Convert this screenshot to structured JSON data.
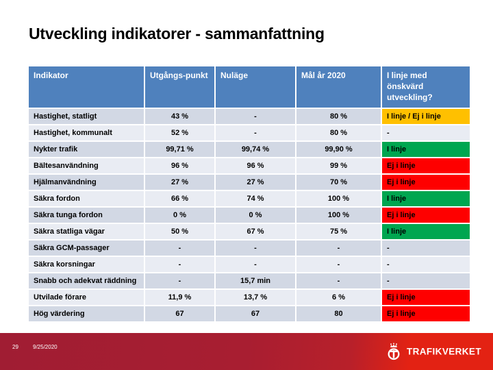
{
  "slide": {
    "title": "Utveckling indikatorer - sammanfattning",
    "page_number": "29",
    "date": "9/25/2020",
    "logo_text": "TRAFIKVERKET"
  },
  "table": {
    "headers": [
      "Indikator",
      "Utgångs-punkt",
      "Nuläge",
      "Mål år 2020",
      "I linje med önskvärd utveckling?"
    ],
    "rows": [
      {
        "name": "Hastighet, statligt",
        "start": "43 %",
        "now": "-",
        "goal": "80 %",
        "status": "I linje / Ej i linje",
        "status_color": "yellow"
      },
      {
        "name": "Hastighet, kommunalt",
        "start": "52 %",
        "now": "-",
        "goal": "80 %",
        "status": "-",
        "status_color": "none"
      },
      {
        "name": "Nykter trafik",
        "start": "99,71 %",
        "now": "99,74 %",
        "goal": "99,90 %",
        "status": "I linje",
        "status_color": "green"
      },
      {
        "name": "Bältesanvändning",
        "start": "96 %",
        "now": "96 %",
        "goal": "99 %",
        "status": "Ej i linje",
        "status_color": "red"
      },
      {
        "name": "Hjälmanvändning",
        "start": "27 %",
        "now": "27 %",
        "goal": "70 %",
        "status": "Ej i linje",
        "status_color": "red"
      },
      {
        "name": "Säkra fordon",
        "start": "66 %",
        "now": "74 %",
        "goal": "100 %",
        "status": "I linje",
        "status_color": "green"
      },
      {
        "name": "Säkra tunga fordon",
        "start": "0 %",
        "now": "0 %",
        "goal": "100 %",
        "status": "Ej i linje",
        "status_color": "red"
      },
      {
        "name": "Säkra statliga vägar",
        "start": "50 %",
        "now": "67 %",
        "goal": "75 %",
        "status": "I linje",
        "status_color": "green"
      },
      {
        "name": "Säkra GCM-passager",
        "start": "-",
        "now": "-",
        "goal": "-",
        "status": "-",
        "status_color": "none"
      },
      {
        "name": "Säkra korsningar",
        "start": "-",
        "now": "-",
        "goal": "-",
        "status": "-",
        "status_color": "none"
      },
      {
        "name": "Snabb och adekvat räddning",
        "start": "-",
        "now": "15,7 min",
        "goal": "-",
        "status": "-",
        "status_color": "none"
      },
      {
        "name": "Utvilade förare",
        "start": "11,9 %",
        "now": "13,7 %",
        "goal": "6 %",
        "status": "Ej i linje",
        "status_color": "red"
      },
      {
        "name": "Hög värdering",
        "start": "67",
        "now": "67",
        "goal": "80",
        "status": "Ej i linje",
        "status_color": "red"
      }
    ]
  },
  "colors": {
    "header_bg": "#4f81bd",
    "row_dark": "#d2d8e4",
    "row_light": "#e9ecf3",
    "status_yellow": "#ffc000",
    "status_green": "#00a650",
    "status_red": "#fe0000",
    "footer_dark": "#a01d33",
    "footer_bright": "#e32213"
  }
}
